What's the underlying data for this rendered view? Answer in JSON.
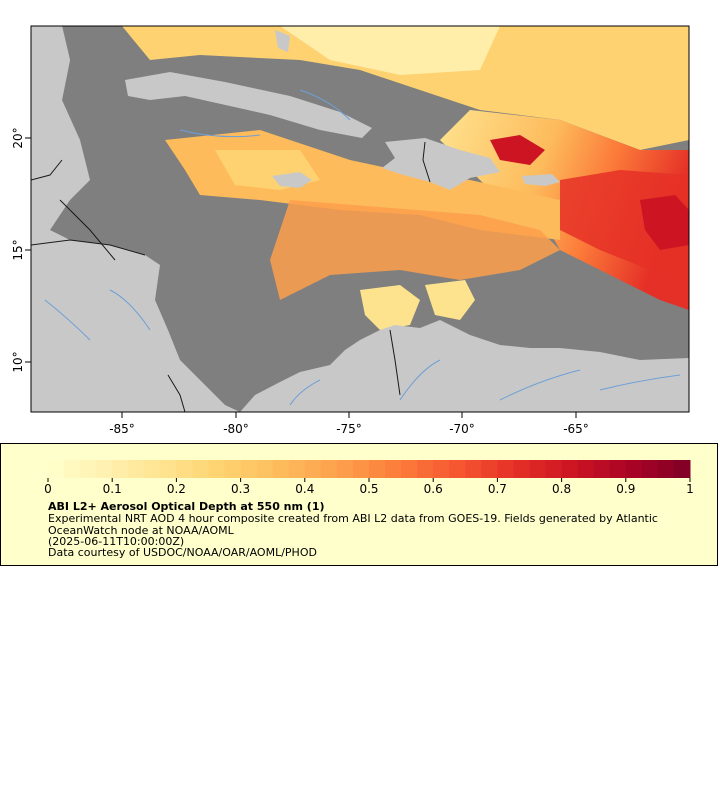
{
  "map": {
    "lon_ticks": [
      "-85°",
      "-80°",
      "-75°",
      "-70°",
      "-65°"
    ],
    "lat_ticks": [
      "20°",
      "15°",
      "10°"
    ],
    "colors": {
      "ocean": "#7f7f7f",
      "land": "#c8c8c8",
      "river": "#6e9fd6",
      "border": "#1a1a1a"
    }
  },
  "legend": {
    "colorbar_ticks": [
      "0",
      "0.1",
      "0.2",
      "0.3",
      "0.4",
      "0.5",
      "0.6",
      "0.7",
      "0.8",
      "0.9",
      "1"
    ],
    "title": "ABI L2+ Aerosol Optical Depth at 550 nm (1)",
    "description": "Experimental NRT AOD 4 hour composite created from ABI L2 data from GOES-19. Fields generated by Atlantic OceanWatch node at NOAA/AOML",
    "timestamp": "(2025-06-11T10:00:00Z)",
    "credit": "Data courtesy of USDOC/NOAA/OAR/AOML/PHOD",
    "colormap": [
      "#ffffcc",
      "#fff0b0",
      "#fee38f",
      "#fed270",
      "#fdbb5c",
      "#fd9f4b",
      "#fc7d3a",
      "#f65731",
      "#e53027",
      "#cc1423",
      "#a80325",
      "#800026"
    ]
  }
}
